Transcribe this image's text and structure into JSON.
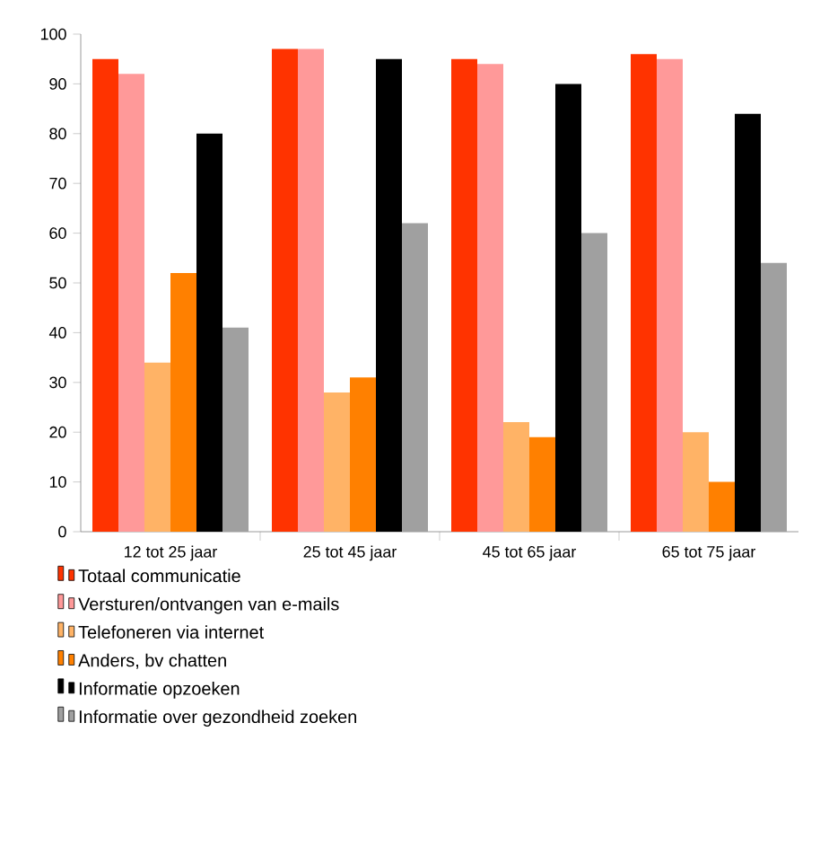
{
  "chart_data": {
    "type": "bar",
    "categories": [
      "12 tot 25 jaar",
      "25 tot 45 jaar",
      "45 tot 65 jaar",
      "65 tot 75 jaar"
    ],
    "series": [
      {
        "name": "Totaal communicatie",
        "color": "#ff3300",
        "values": [
          95,
          97,
          95,
          96
        ]
      },
      {
        "name": "Versturen/ontvangen van e-mails",
        "color": "#ff9999",
        "values": [
          92,
          97,
          94,
          95
        ]
      },
      {
        "name": "Telefoneren via internet",
        "color": "#ffb366",
        "values": [
          34,
          28,
          22,
          20
        ]
      },
      {
        "name": "Anders, bv chatten",
        "color": "#ff8000",
        "values": [
          52,
          31,
          19,
          10
        ]
      },
      {
        "name": "Informatie opzoeken",
        "color": "#000000",
        "values": [
          80,
          95,
          90,
          84
        ]
      },
      {
        "name": "Informatie over gezondheid zoeken",
        "color": "#a0a0a0",
        "values": [
          41,
          62,
          60,
          54
        ]
      }
    ],
    "ylim": [
      0,
      100
    ],
    "yticks": [
      0,
      10,
      20,
      30,
      40,
      50,
      60,
      70,
      80,
      90,
      100
    ],
    "legend": "bottom"
  }
}
